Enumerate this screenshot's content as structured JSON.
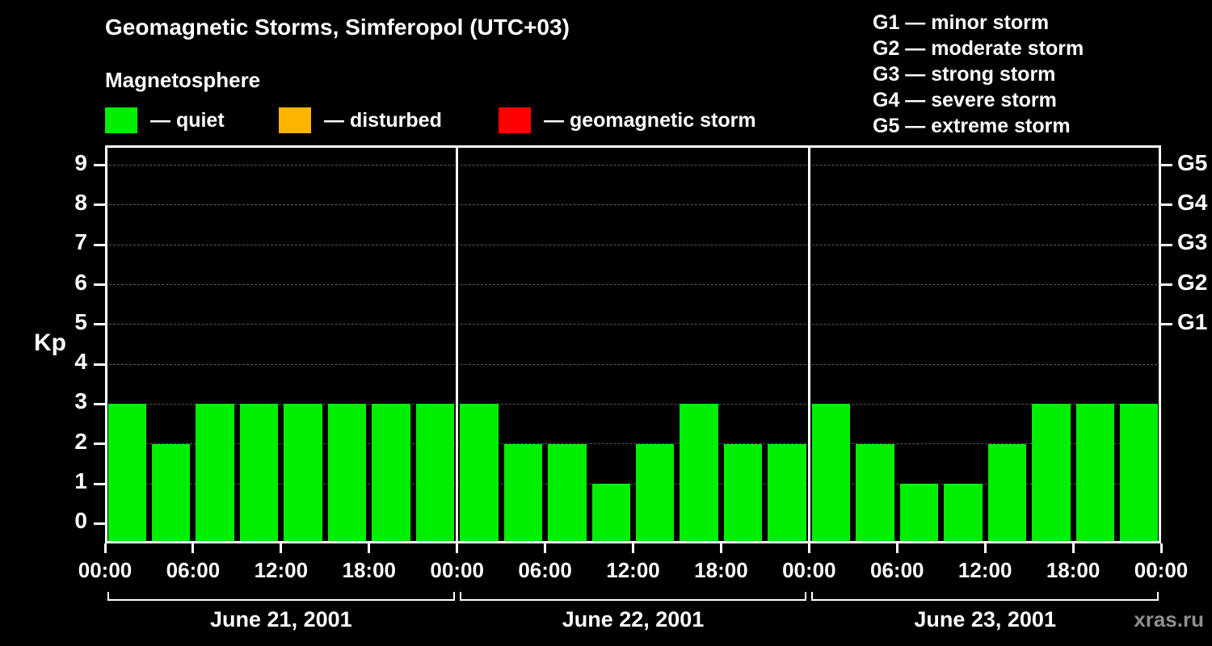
{
  "header": {
    "title": "Geomagnetic Storms, Simferopol (UTC+03)",
    "subtitle": "Magnetosphere"
  },
  "legend": {
    "items": [
      {
        "label": "— quiet",
        "color": "#00ee00"
      },
      {
        "label": "— disturbed",
        "color": "#ffb400"
      },
      {
        "label": "— geomagnetic storm",
        "color": "#ff0000"
      }
    ]
  },
  "storm_scale": [
    "G1 — minor storm",
    "G2 — moderate storm",
    "G3 — strong storm",
    "G4 — severe storm",
    "G5 — extreme storm"
  ],
  "watermark": "xras.ru",
  "chart_data": {
    "type": "bar",
    "title": "Geomagnetic Storms, Simferopol (UTC+03)",
    "ylabel": "Kp",
    "ylim": [
      0,
      9
    ],
    "grid": "dashed horizontal",
    "legend_position": "top",
    "bar_color": "#00ee00",
    "bar_interval_hours": 3,
    "y_ticks": [
      0,
      1,
      2,
      3,
      4,
      5,
      6,
      7,
      8,
      9
    ],
    "right_ticks": [
      {
        "kp": 5,
        "label": "G1"
      },
      {
        "kp": 6,
        "label": "G2"
      },
      {
        "kp": 7,
        "label": "G3"
      },
      {
        "kp": 8,
        "label": "G4"
      },
      {
        "kp": 9,
        "label": "G5"
      }
    ],
    "x_tick_labels": [
      "00:00",
      "06:00",
      "12:00",
      "18:00"
    ],
    "days": [
      {
        "date": "June 21, 2001",
        "values": [
          3,
          2,
          3,
          3,
          3,
          3,
          3,
          3
        ]
      },
      {
        "date": "June 22, 2001",
        "values": [
          3,
          2,
          2,
          1,
          2,
          3,
          2,
          2
        ]
      },
      {
        "date": "June 23, 2001",
        "values": [
          3,
          2,
          1,
          1,
          2,
          3,
          3,
          3
        ]
      }
    ]
  }
}
